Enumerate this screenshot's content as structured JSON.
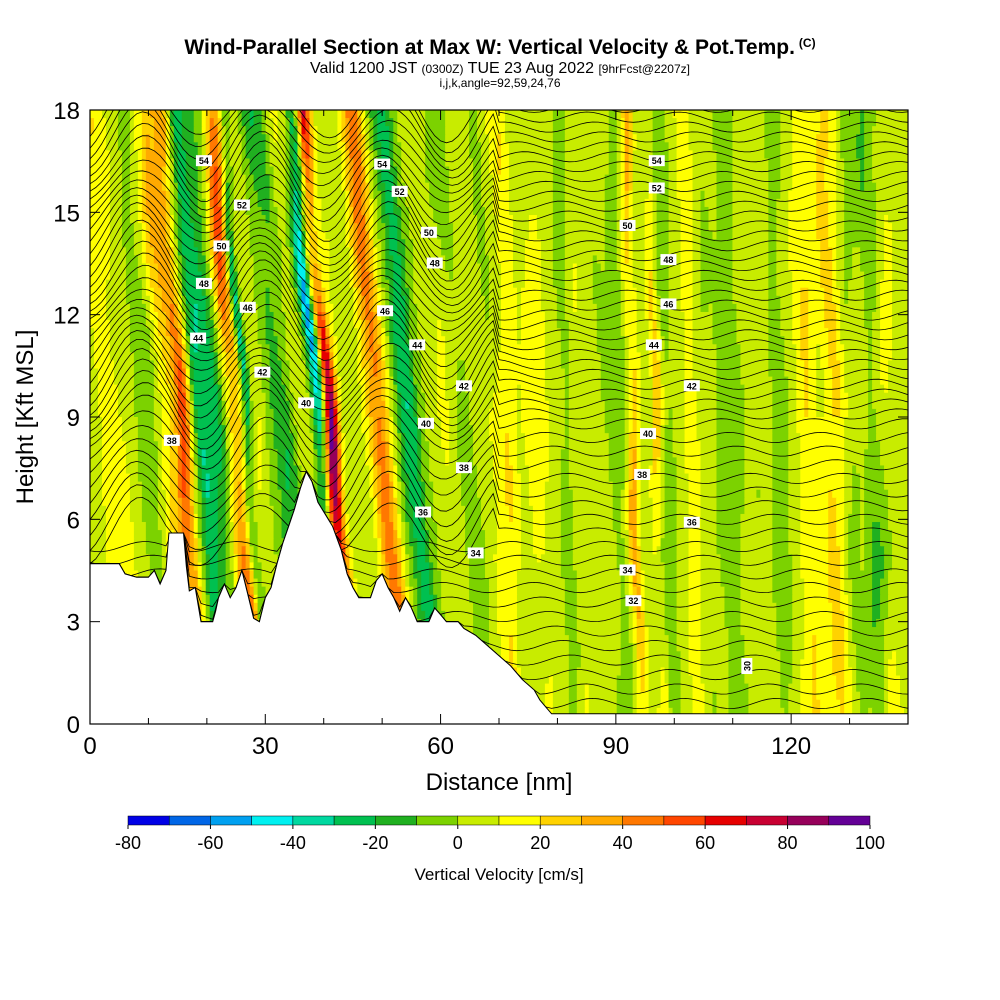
{
  "header": {
    "title": "Wind-Parallel Section at Max W: Vertical Velocity & Pot.Temp.",
    "title_tag": "(C)",
    "valid_prefix": "Valid 1200 JST",
    "valid_utc": "(0300Z)",
    "valid_date": "TUE 23 Aug 2022",
    "forecast": "[9hrFcst@2207z]",
    "indices": "i,j,k,angle=92,59,24,76"
  },
  "chart_data": {
    "type": "heatmap",
    "xlabel": "Distance [nm]",
    "ylabel": "Height [Kft MSL]",
    "xlim": [
      0,
      140
    ],
    "ylim": [
      0,
      18
    ],
    "x_ticks": [
      "0",
      "30",
      "60",
      "90",
      "120"
    ],
    "y_ticks": [
      "0",
      "3",
      "6",
      "9",
      "12",
      "15",
      "18"
    ],
    "colorbar": {
      "title": "Vertical Velocity [cm/s]",
      "range": [
        -80,
        100
      ],
      "step": 10,
      "labels": [
        "-80",
        "-60",
        "-40",
        "-20",
        "0",
        "20",
        "40",
        "60",
        "80",
        "100"
      ],
      "colors": [
        "#0000e6",
        "#0066e6",
        "#00a0f0",
        "#00f0f0",
        "#00d8a0",
        "#00c050",
        "#20b020",
        "#7cd200",
        "#c8ec00",
        "#ffff00",
        "#ffd200",
        "#ffaa00",
        "#ff7800",
        "#ff4600",
        "#e60000",
        "#c80032",
        "#96005a",
        "#640096"
      ]
    },
    "vertical_velocity_features": [
      {
        "name": "updraft",
        "x": 41.5,
        "width": 1.2,
        "value": 85
      },
      {
        "name": "downdraft",
        "x": 39.5,
        "width": 1.1,
        "value": -55
      },
      {
        "name": "downdraft",
        "x": 27,
        "width": 0.8,
        "value": -45
      },
      {
        "name": "updraft",
        "x": 16,
        "width": 1.3,
        "value": 35
      },
      {
        "name": "updraft",
        "x": 25,
        "width": 1.5,
        "value": 35
      },
      {
        "name": "updraft",
        "x": 50,
        "width": 1.6,
        "value": 25
      },
      {
        "name": "updraft",
        "x": 93,
        "width": 1.0,
        "value": 30
      },
      {
        "name": "updraft",
        "x": 97,
        "width": 1.0,
        "value": 25
      },
      {
        "name": "downdraft",
        "x": 21,
        "width": 1.6,
        "value": -15
      },
      {
        "name": "downdraft",
        "x": 54,
        "width": 1.8,
        "value": -15
      },
      {
        "name": "downdraft",
        "x": 90,
        "width": 2.0,
        "value": -12
      }
    ],
    "potential_temperature_contours": {
      "levels": [
        30,
        32,
        34,
        36,
        38,
        40,
        42,
        44,
        46,
        48,
        50,
        52,
        54
      ],
      "label_units": "C",
      "labels": [
        {
          "text": "54",
          "x": 19.5,
          "y": 16.5
        },
        {
          "text": "54",
          "x": 50,
          "y": 16.4
        },
        {
          "text": "54",
          "x": 97,
          "y": 16.5
        },
        {
          "text": "52",
          "x": 26,
          "y": 15.2
        },
        {
          "text": "52",
          "x": 53,
          "y": 15.6
        },
        {
          "text": "52",
          "x": 97,
          "y": 15.7
        },
        {
          "text": "50",
          "x": 22.5,
          "y": 14.0
        },
        {
          "text": "50",
          "x": 58,
          "y": 14.4
        },
        {
          "text": "50",
          "x": 92,
          "y": 14.6
        },
        {
          "text": "48",
          "x": 19.5,
          "y": 12.9
        },
        {
          "text": "48",
          "x": 59,
          "y": 13.5
        },
        {
          "text": "48",
          "x": 99,
          "y": 13.6
        },
        {
          "text": "46",
          "x": 27,
          "y": 12.2
        },
        {
          "text": "46",
          "x": 50.5,
          "y": 12.1
        },
        {
          "text": "46",
          "x": 99,
          "y": 12.3
        },
        {
          "text": "44",
          "x": 18.5,
          "y": 11.3
        },
        {
          "text": "44",
          "x": 56,
          "y": 11.1
        },
        {
          "text": "44",
          "x": 96.5,
          "y": 11.1
        },
        {
          "text": "42",
          "x": 29.5,
          "y": 10.3
        },
        {
          "text": "42",
          "x": 64,
          "y": 9.9
        },
        {
          "text": "42",
          "x": 103,
          "y": 9.9
        },
        {
          "text": "40",
          "x": 37,
          "y": 9.4
        },
        {
          "text": "40",
          "x": 57.5,
          "y": 8.8
        },
        {
          "text": "40",
          "x": 95.5,
          "y": 8.5
        },
        {
          "text": "38",
          "x": 14,
          "y": 8.3
        },
        {
          "text": "38",
          "x": 64,
          "y": 7.5
        },
        {
          "text": "38",
          "x": 94.5,
          "y": 7.3
        },
        {
          "text": "36",
          "x": 57,
          "y": 6.2
        },
        {
          "text": "36",
          "x": 103,
          "y": 5.9
        },
        {
          "text": "34",
          "x": 66,
          "y": 5.0
        },
        {
          "text": "34",
          "x": 92,
          "y": 4.5
        },
        {
          "text": "32",
          "x": 93,
          "y": 3.6
        },
        {
          "text": "30",
          "x": 112.5,
          "y": 1.7
        }
      ]
    },
    "terrain": [
      [
        0,
        4.7
      ],
      [
        5,
        4.7
      ],
      [
        6,
        4.4
      ],
      [
        8,
        4.3
      ],
      [
        10,
        4.3
      ],
      [
        11,
        4.5
      ],
      [
        12,
        4.1
      ],
      [
        13,
        4.5
      ],
      [
        13.5,
        5.6
      ],
      [
        16,
        5.6
      ],
      [
        16.5,
        4.6
      ],
      [
        17,
        3.9
      ],
      [
        18,
        4.0
      ],
      [
        19,
        3.0
      ],
      [
        21,
        3.0
      ],
      [
        21.5,
        3.3
      ],
      [
        22,
        3.7
      ],
      [
        23,
        4.1
      ],
      [
        24,
        3.7
      ],
      [
        25,
        4.0
      ],
      [
        26,
        4.5
      ],
      [
        27,
        3.8
      ],
      [
        28,
        3.1
      ],
      [
        29,
        3.0
      ],
      [
        30,
        3.7
      ],
      [
        31,
        4.0
      ],
      [
        32,
        4.7
      ],
      [
        33,
        5.3
      ],
      [
        34,
        5.8
      ],
      [
        35,
        6.3
      ],
      [
        36,
        6.9
      ],
      [
        37,
        7.4
      ],
      [
        38,
        7.1
      ],
      [
        39,
        6.5
      ],
      [
        41.5,
        5.8
      ],
      [
        43,
        5.1
      ],
      [
        44,
        4.4
      ],
      [
        45,
        4.0
      ],
      [
        46,
        3.7
      ],
      [
        48,
        3.7
      ],
      [
        49,
        4.2
      ],
      [
        50,
        4.4
      ],
      [
        51,
        4.0
      ],
      [
        52,
        3.7
      ],
      [
        53,
        3.3
      ],
      [
        54,
        3.7
      ],
      [
        55,
        3.4
      ],
      [
        56,
        3.0
      ],
      [
        58,
        3.0
      ],
      [
        59,
        3.4
      ],
      [
        60,
        3.2
      ],
      [
        61,
        3.0
      ],
      [
        63,
        3.0
      ],
      [
        64,
        2.8
      ],
      [
        66,
        2.6
      ],
      [
        68,
        2.3
      ],
      [
        70,
        2.0
      ],
      [
        72,
        1.7
      ],
      [
        74,
        1.3
      ],
      [
        76,
        1.0
      ],
      [
        77,
        0.7
      ],
      [
        78,
        0.5
      ],
      [
        79,
        0.3
      ],
      [
        140,
        0.3
      ]
    ]
  }
}
